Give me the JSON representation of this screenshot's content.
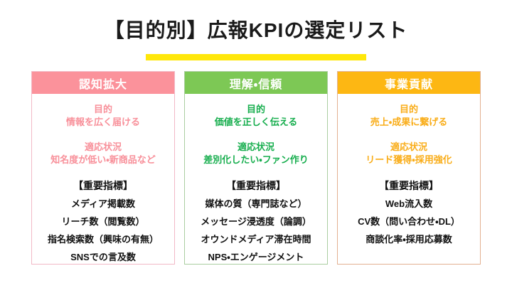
{
  "slide": {
    "title": "【目的別】広報KPIの選定リスト",
    "underline_color": "#ffe70a"
  },
  "columns": [
    {
      "header": "認知拡大",
      "theme_colors": {
        "header_bg": "#fb929b",
        "border": "#f2b8c6",
        "text": "#f8909a"
      },
      "purpose_label": "目的",
      "purpose": "情報を広く届ける",
      "situation_label": "適応状況",
      "situation": "知名度が低い・新商品など",
      "kpi_label": "【重要指標】",
      "kpis": [
        "メディア掲載数",
        "リーチ数（閲覧数）",
        "指名検索数（興味の有無）",
        "SNSでの言及数"
      ]
    },
    {
      "header": "理解・信頼",
      "theme_colors": {
        "header_bg": "#7dc855",
        "border": "#aacda0",
        "text": "#17ae4e"
      },
      "purpose_label": "目的",
      "purpose": "価値を正しく伝える",
      "situation_label": "適応状況",
      "situation": "差別化したい・ファン作り",
      "kpi_label": "【重要指標】",
      "kpis": [
        "媒体の質（専門誌など）",
        "メッセージ浸透度（論調）",
        "オウンドメディア滞在時間",
        "NPS・エンゲージメント"
      ]
    },
    {
      "header": "事業貢献",
      "theme_colors": {
        "header_bg": "#fdb713",
        "border": "#e3b091",
        "text": "#f9ad19"
      },
      "purpose_label": "目的",
      "purpose": "売上・成果に繋げる",
      "situation_label": "適応状況",
      "situation": "リード獲得・採用強化",
      "kpi_label": "【重要指標】",
      "kpis": [
        "Web流入数",
        "CV数（問い合わせ・DL）",
        "商談化率・採用応募数"
      ]
    }
  ]
}
